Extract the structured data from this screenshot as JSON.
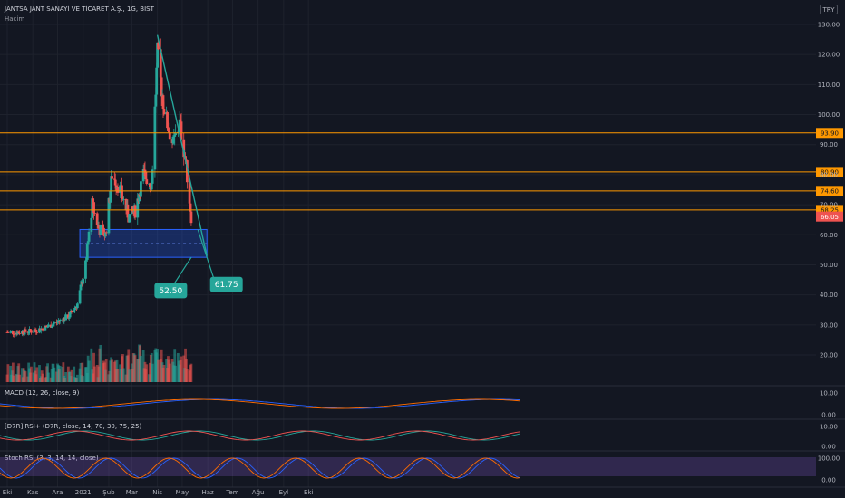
{
  "header": {
    "symbol": "JANTSA JANT SANAYİ VE TİCARET A.Ş., 1G, BIST",
    "volume_label": "Hacim",
    "currency": "TRY"
  },
  "price_axis": {
    "ticks": [
      "130.00",
      "120.00",
      "110.00",
      "100.00",
      "90.00",
      "80.00",
      "70.00",
      "60.00",
      "50.00",
      "40.00",
      "30.00",
      "20.00"
    ]
  },
  "time_axis": {
    "ticks": [
      "Eki",
      "Kas",
      "Ara",
      "2021",
      "Şub",
      "Mar",
      "Nis",
      "May",
      "Haz",
      "Tem",
      "Ağu",
      "Eyl",
      "Eki"
    ]
  },
  "annotations": {
    "support_low": "52.50",
    "trend_target": "61.75"
  },
  "indicators": {
    "macd": {
      "label": "MACD (12, 26, close, 9)",
      "ticks": [
        "10.00",
        "0.00"
      ]
    },
    "rsi": {
      "label": "[D7R] RSI+ (D7R, close, 14, 70, 30, 75, 25)",
      "ticks": [
        "10.00",
        "0.00"
      ]
    },
    "stoch": {
      "label": "Stoch RSI (3, 3, 14, 14, close)",
      "ticks": [
        "100.00",
        "0.00"
      ]
    }
  },
  "chart_data": {
    "type": "candlestick",
    "symbol": "JANTSA",
    "interval": "1G",
    "exchange": "BIST",
    "currency": "TRY",
    "ylim": [
      10,
      135
    ],
    "x_range": [
      "2020-10-01",
      "2021-10-31"
    ],
    "last_price": 66.05,
    "horizontal_levels": [
      93.9,
      80.9,
      74.6,
      68.25
    ],
    "level_color": "#ff9800",
    "support_zone": {
      "low": 52.5,
      "high": 61.75,
      "from": "2020-12-28",
      "to": "2021-05-31"
    },
    "trendline": {
      "from": [
        "2021-04-01",
        126.5
      ],
      "to": [
        "2021-05-31",
        53.0
      ],
      "color": "#26a69a"
    },
    "up_color": "#26a69a",
    "down_color": "#ef5350",
    "series": [
      {
        "date": "2020-10-01",
        "close": 27.5
      },
      {
        "date": "2020-10-15",
        "close": 27.5
      },
      {
        "date": "2020-11-01",
        "close": 28.0
      },
      {
        "date": "2020-11-15",
        "close": 29.0
      },
      {
        "date": "2020-12-01",
        "close": 31.0
      },
      {
        "date": "2020-12-15",
        "close": 33.0
      },
      {
        "date": "2020-12-25",
        "close": 37.0
      },
      {
        "date": "2021-01-04",
        "close": 50.0
      },
      {
        "date": "2021-01-12",
        "close": 70.0
      },
      {
        "date": "2021-01-20",
        "close": 62.0
      },
      {
        "date": "2021-01-28",
        "close": 60.0
      },
      {
        "date": "2021-02-05",
        "close": 80.0
      },
      {
        "date": "2021-02-15",
        "close": 75.0
      },
      {
        "date": "2021-02-25",
        "close": 66.0
      },
      {
        "date": "2021-03-05",
        "close": 68.0
      },
      {
        "date": "2021-03-15",
        "close": 80.0
      },
      {
        "date": "2021-03-25",
        "close": 77.0
      },
      {
        "date": "2021-04-01",
        "close": 120.0
      },
      {
        "date": "2021-04-10",
        "close": 100.0
      },
      {
        "date": "2021-04-20",
        "close": 90.0
      },
      {
        "date": "2021-04-28",
        "close": 97.0
      },
      {
        "date": "2021-05-05",
        "close": 85.0
      },
      {
        "date": "2021-05-12",
        "close": 66.05
      }
    ]
  }
}
